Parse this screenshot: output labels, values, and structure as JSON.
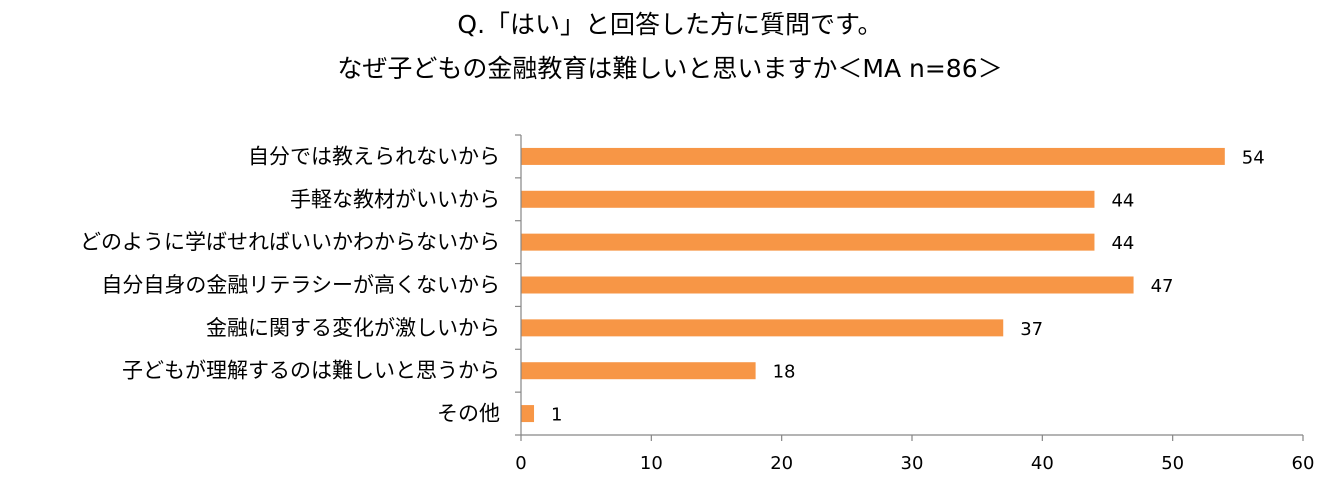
{
  "chart_data": {
    "type": "bar",
    "orientation": "horizontal",
    "title": [
      "Q.「はい」と回答した方に質問です。",
      "なぜ子どもの金融教育は難しいと思いますか＜MA n=86＞"
    ],
    "categories": [
      "自分では教えられないから",
      "手軽な教材がいいから",
      "どのように学ばせればいいかわからないから",
      "自分自身の金融リテラシーが高くないから",
      "金融に関する変化が激しいから",
      "子どもが理解するのは難しいと思うから",
      "その他"
    ],
    "values": [
      54,
      44,
      44,
      47,
      37,
      18,
      1
    ],
    "xlim": [
      0,
      60
    ],
    "xticks": [
      0,
      10,
      20,
      30,
      40,
      50,
      60
    ],
    "bar_color": "#F79646",
    "axis_color": "#868686",
    "grid": false,
    "legend": "none",
    "data_labels": true
  }
}
